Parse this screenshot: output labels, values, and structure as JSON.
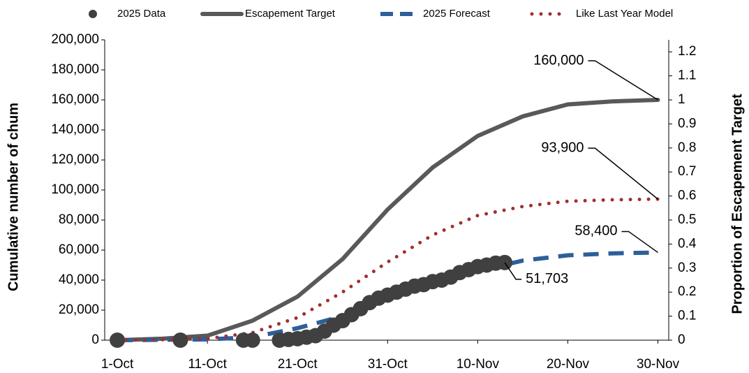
{
  "chart_data": {
    "type": "line",
    "ylabel": "Cumulative number of chum",
    "y2label": "Proportion of Escapement Target",
    "xlim": [
      -1.4,
      61.2
    ],
    "xticks": [
      {
        "value": 0,
        "label": "1-Oct"
      },
      {
        "value": 10,
        "label": "11-Oct"
      },
      {
        "value": 20,
        "label": "21-Oct"
      },
      {
        "value": 30,
        "label": "31-Oct"
      },
      {
        "value": 40,
        "label": "10-Nov"
      },
      {
        "value": 50,
        "label": "20-Nov"
      },
      {
        "value": 60,
        "label": "30-Nov"
      }
    ],
    "ylim": [
      0,
      200000
    ],
    "yticks": [
      {
        "value": 0,
        "label": "0"
      },
      {
        "value": 20000,
        "label": "20,000"
      },
      {
        "value": 40000,
        "label": "40,000"
      },
      {
        "value": 60000,
        "label": "60,000"
      },
      {
        "value": 80000,
        "label": "80,000"
      },
      {
        "value": 100000,
        "label": "100,000"
      },
      {
        "value": 120000,
        "label": "120,000"
      },
      {
        "value": 140000,
        "label": "140,000"
      },
      {
        "value": 160000,
        "label": "160,000"
      },
      {
        "value": 180000,
        "label": "180,000"
      },
      {
        "value": 200000,
        "label": "200,000"
      }
    ],
    "y2lim": [
      0,
      1.25
    ],
    "y2ticks": [
      0,
      0.1,
      0.2,
      0.3,
      0.4,
      0.5,
      0.6,
      0.7,
      0.8,
      0.9,
      1,
      1.1,
      1.2
    ],
    "series": [
      {
        "name": "2025 Data",
        "color": "#404040",
        "style": "markers",
        "x": [
          0,
          7,
          14,
          15,
          18,
          19,
          20,
          21,
          22,
          23,
          24,
          25,
          26,
          27,
          28,
          29,
          30,
          31,
          32,
          33,
          34,
          35,
          36,
          37,
          38,
          39,
          40,
          41,
          42,
          43
        ],
        "values": [
          0,
          0,
          0,
          0,
          0,
          500,
          1000,
          2000,
          3000,
          6000,
          10000,
          13000,
          17000,
          21000,
          25000,
          28000,
          30000,
          32000,
          34000,
          36000,
          37000,
          39000,
          40000,
          42000,
          45000,
          47000,
          49000,
          50000,
          51300,
          51703
        ],
        "value_labels": [
          null,
          null,
          null,
          null,
          null,
          null,
          null,
          null,
          null,
          null,
          null,
          null,
          null,
          null,
          null,
          null,
          null,
          null,
          null,
          null,
          null,
          null,
          null,
          null,
          null,
          null,
          null,
          null,
          null,
          "51,703"
        ]
      },
      {
        "name": "Escapement Target",
        "color": "#595959",
        "style": "solid",
        "x": [
          0,
          5,
          10,
          15,
          20,
          25,
          30,
          35,
          40,
          45,
          50,
          55,
          60
        ],
        "values": [
          0,
          1000,
          3000,
          13000,
          29000,
          54000,
          87000,
          115000,
          136000,
          149000,
          157000,
          159000,
          160000
        ],
        "value_labels": [
          null,
          null,
          null,
          null,
          null,
          null,
          null,
          null,
          null,
          null,
          null,
          null,
          "160,000"
        ]
      },
      {
        "name": "2025 Forecast",
        "color": "#2e5f9a",
        "style": "dashed",
        "x": [
          0,
          10,
          15,
          20,
          25,
          30,
          35,
          40,
          45,
          50,
          55,
          60
        ],
        "values": [
          0,
          500,
          2000,
          8000,
          16000,
          27000,
          38000,
          46000,
          53000,
          56500,
          57800,
          58400
        ],
        "value_labels": [
          null,
          null,
          null,
          null,
          null,
          null,
          null,
          null,
          null,
          null,
          null,
          "58,400"
        ]
      },
      {
        "name": "Like Last Year Model",
        "color": "#a0302f",
        "style": "dotted",
        "x": [
          0,
          5,
          10,
          15,
          20,
          25,
          30,
          35,
          40,
          45,
          50,
          55,
          60
        ],
        "values": [
          0,
          300,
          1000,
          5000,
          15000,
          32000,
          52000,
          70000,
          83000,
          89000,
          92500,
          93500,
          93900
        ],
        "value_labels": [
          null,
          null,
          null,
          null,
          null,
          null,
          null,
          null,
          null,
          null,
          null,
          null,
          "93,900"
        ]
      }
    ]
  }
}
